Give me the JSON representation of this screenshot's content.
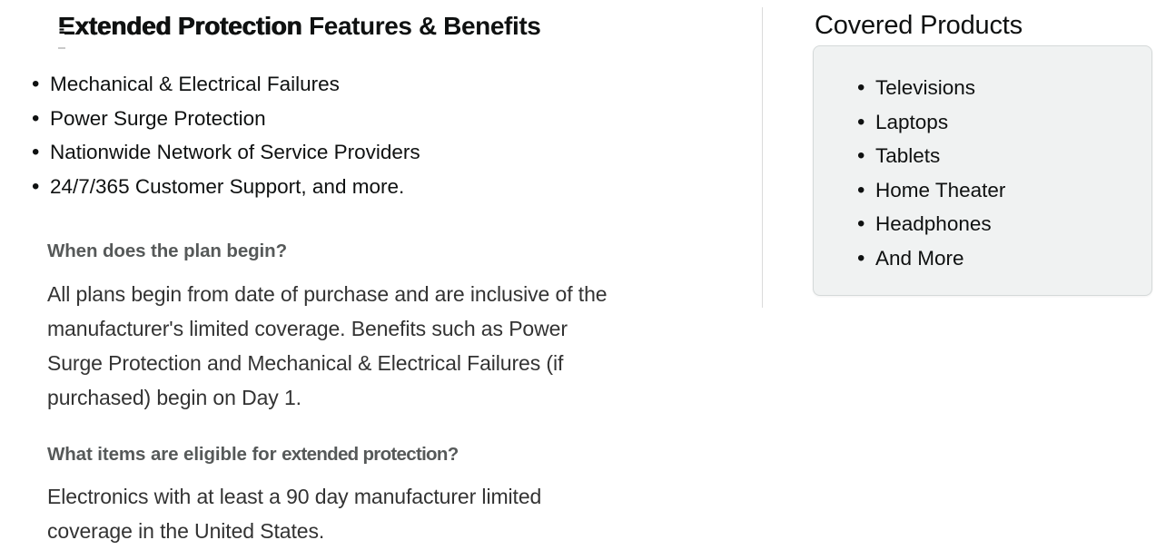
{
  "colors": {
    "text_primary": "#0F1111",
    "question_gray": "#565959",
    "paragraph_text": "#333333",
    "box_background": "#F0F2F2",
    "box_border": "#D5D9D9",
    "divider": "#DBDBDB"
  },
  "main": {
    "title": {
      "primary": "Extended Protection",
      "secondary": "Features & Benefits"
    },
    "benefits": [
      "Mechanical & Electrical Failures",
      "Power Surge Protection",
      "Nationwide Network of Service Providers",
      "24/7/365 Customer Support, and more."
    ],
    "faq": [
      {
        "question": "When does the plan begin?",
        "question_sub": "",
        "answer_lines": [
          "All plans begin from date of purchase and are inclusive of the",
          "manufacturer's limited coverage. Benefits such as Power",
          "Surge Protection and Mechanical & Electrical Failures (if",
          "purchased) begin on Day 1."
        ]
      },
      {
        "question": "What items are eligible for",
        "question_sub": "extended protection?",
        "answer_lines": [
          "Electronics with at least a 90 day manufacturer limited",
          "coverage in the United States."
        ]
      }
    ]
  },
  "sidebar": {
    "title": "Covered Products",
    "products": [
      "Televisions",
      "Laptops",
      "Tablets",
      "Home Theater",
      "Headphones",
      "And More"
    ]
  }
}
